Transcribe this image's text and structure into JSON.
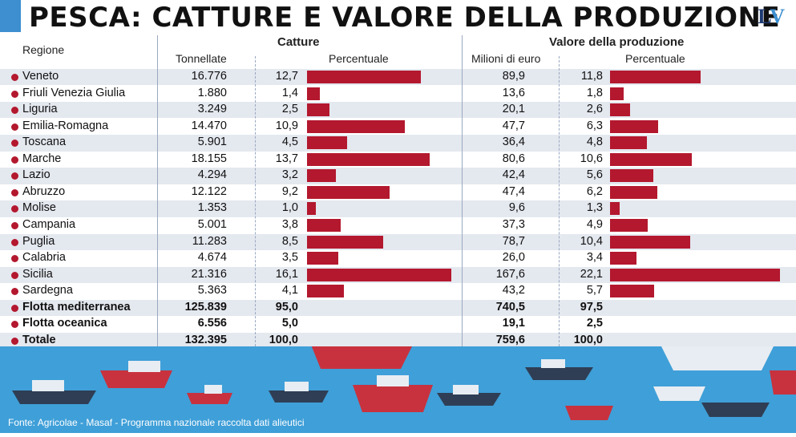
{
  "title": "PESCA: CATTURE E VALORE DELLA PRODUZIONE",
  "logo": {
    "part1": "L",
    "part2": "V"
  },
  "headers": {
    "regione": "Regione",
    "catture": "Catture",
    "valore": "Valore della produzione",
    "tonnellate": "Tonnellate",
    "percentuale_catture": "Percentuale",
    "milioni": "Milioni di euro",
    "percentuale_valore": "Percentuale"
  },
  "source": "Fonte: Agricolae - Masaf - Programma nazionale raccolta dati alieutici",
  "colors": {
    "bar": "#b3182e",
    "sea": "#3f9fd8",
    "accent": "#3d8fd0"
  },
  "chart_data": {
    "type": "table",
    "columns": [
      "Regione",
      "Tonnellate",
      "Percentuale catture",
      "Milioni di euro",
      "Percentuale valore"
    ],
    "rows": [
      {
        "regione": "Veneto",
        "tonnellate": "16.776",
        "pct_catture": "12,7",
        "milioni": "89,9",
        "pct_valore": "11,8",
        "pct_catture_val": 12.7,
        "pct_valore_val": 11.8
      },
      {
        "regione": "Friuli Venezia Giulia",
        "tonnellate": "1.880",
        "pct_catture": "1,4",
        "milioni": "13,6",
        "pct_valore": "1,8",
        "pct_catture_val": 1.4,
        "pct_valore_val": 1.8
      },
      {
        "regione": "Liguria",
        "tonnellate": "3.249",
        "pct_catture": "2,5",
        "milioni": "20,1",
        "pct_valore": "2,6",
        "pct_catture_val": 2.5,
        "pct_valore_val": 2.6
      },
      {
        "regione": "Emilia-Romagna",
        "tonnellate": "14.470",
        "pct_catture": "10,9",
        "milioni": "47,7",
        "pct_valore": "6,3",
        "pct_catture_val": 10.9,
        "pct_valore_val": 6.3
      },
      {
        "regione": "Toscana",
        "tonnellate": "5.901",
        "pct_catture": "4,5",
        "milioni": "36,4",
        "pct_valore": "4,8",
        "pct_catture_val": 4.5,
        "pct_valore_val": 4.8
      },
      {
        "regione": "Marche",
        "tonnellate": "18.155",
        "pct_catture": "13,7",
        "milioni": "80,6",
        "pct_valore": "10,6",
        "pct_catture_val": 13.7,
        "pct_valore_val": 10.6
      },
      {
        "regione": "Lazio",
        "tonnellate": "4.294",
        "pct_catture": "3,2",
        "milioni": "42,4",
        "pct_valore": "5,6",
        "pct_catture_val": 3.2,
        "pct_valore_val": 5.6
      },
      {
        "regione": "Abruzzo",
        "tonnellate": "12.122",
        "pct_catture": "9,2",
        "milioni": "47,4",
        "pct_valore": "6,2",
        "pct_catture_val": 9.2,
        "pct_valore_val": 6.2
      },
      {
        "regione": "Molise",
        "tonnellate": "1.353",
        "pct_catture": "1,0",
        "milioni": "9,6",
        "pct_valore": "1,3",
        "pct_catture_val": 1.0,
        "pct_valore_val": 1.3
      },
      {
        "regione": "Campania",
        "tonnellate": "5.001",
        "pct_catture": "3,8",
        "milioni": "37,3",
        "pct_valore": "4,9",
        "pct_catture_val": 3.8,
        "pct_valore_val": 4.9
      },
      {
        "regione": "Puglia",
        "tonnellate": "11.283",
        "pct_catture": "8,5",
        "milioni": "78,7",
        "pct_valore": "10,4",
        "pct_catture_val": 8.5,
        "pct_valore_val": 10.4
      },
      {
        "regione": "Calabria",
        "tonnellate": "4.674",
        "pct_catture": "3,5",
        "milioni": "26,0",
        "pct_valore": "3,4",
        "pct_catture_val": 3.5,
        "pct_valore_val": 3.4
      },
      {
        "regione": "Sicilia",
        "tonnellate": "21.316",
        "pct_catture": "16,1",
        "milioni": "167,6",
        "pct_valore": "22,1",
        "pct_catture_val": 16.1,
        "pct_valore_val": 22.1
      },
      {
        "regione": "Sardegna",
        "tonnellate": "5.363",
        "pct_catture": "4,1",
        "milioni": "43,2",
        "pct_valore": "5,7",
        "pct_catture_val": 4.1,
        "pct_valore_val": 5.7
      }
    ],
    "totals": [
      {
        "regione": "Flotta mediterranea",
        "tonnellate": "125.839",
        "pct_catture": "95,0",
        "milioni": "740,5",
        "pct_valore": "97,5"
      },
      {
        "regione": "Flotta oceanica",
        "tonnellate": "6.556",
        "pct_catture": "5,0",
        "milioni": "19,1",
        "pct_valore": "2,5"
      },
      {
        "regione": "Totale",
        "tonnellate": "132.395",
        "pct_catture": "100,0",
        "milioni": "759,6",
        "pct_valore": "100,0"
      }
    ]
  }
}
